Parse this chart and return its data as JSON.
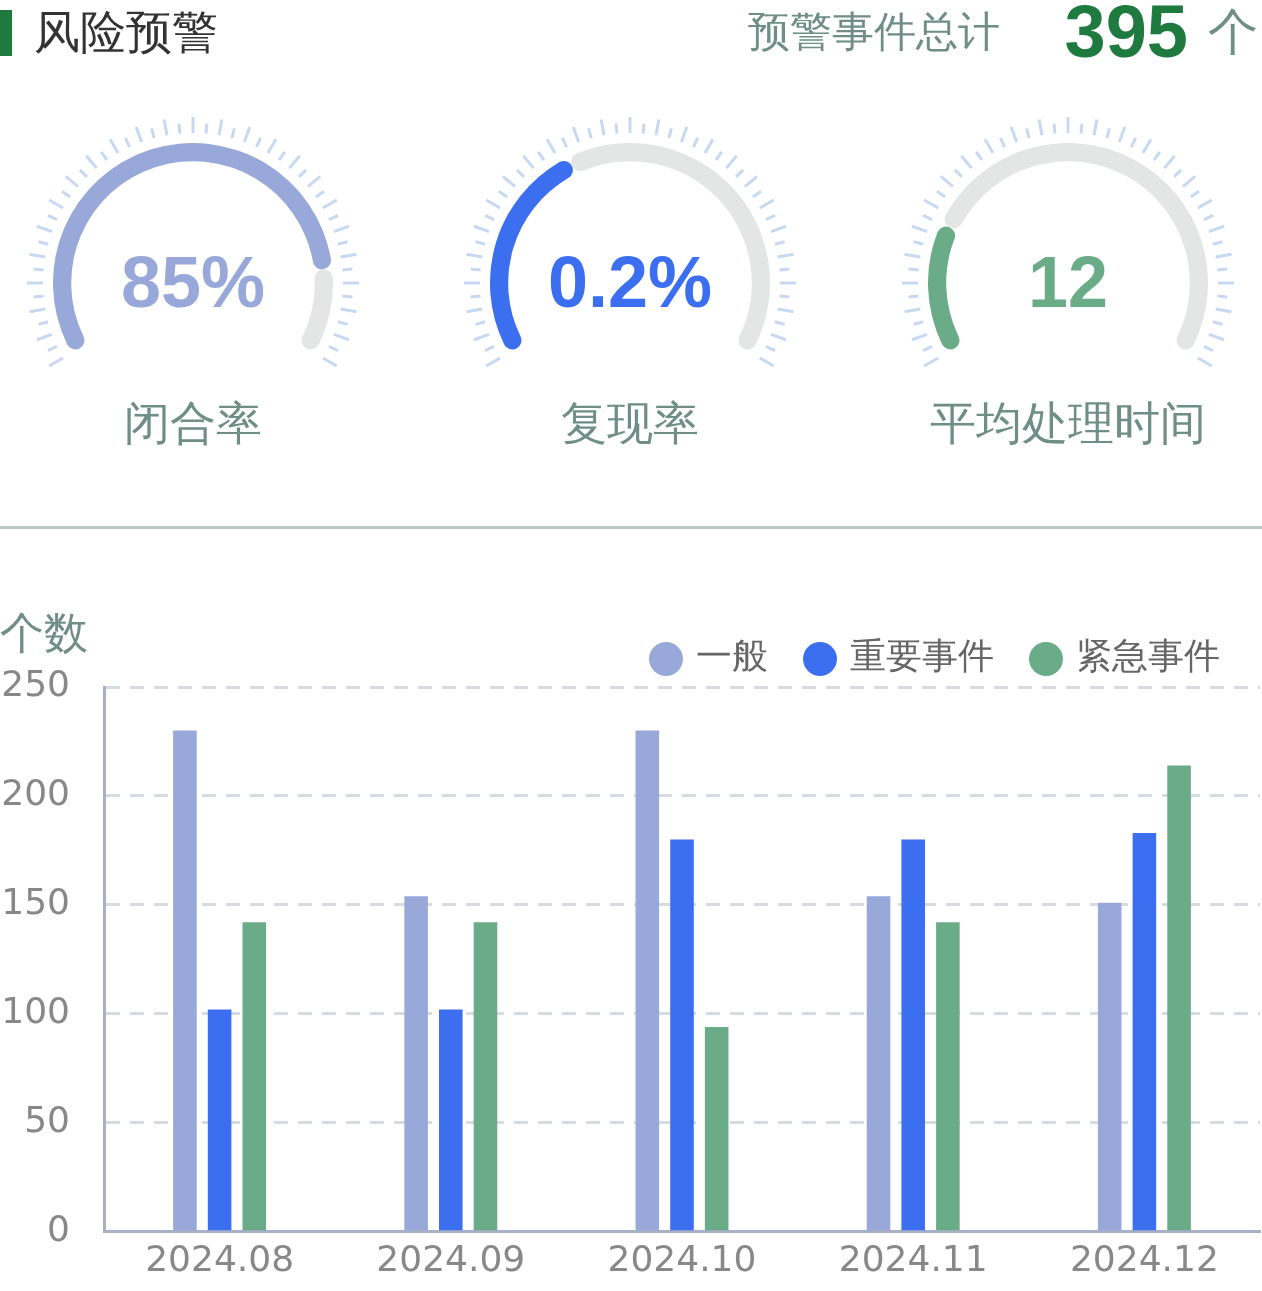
{
  "chart_data": [
    {
      "type": "other",
      "title": "风险预警",
      "annotations": [
        "预警事件总计",
        "395",
        "个"
      ]
    },
    {
      "type": "donut",
      "title": "闭合率",
      "categories": [
        null,
        null
      ],
      "values": [
        85,
        15
      ],
      "colors": [
        "#98a8d8",
        "#e2e7e6"
      ],
      "annotations": [
        "85%"
      ]
    },
    {
      "type": "donut",
      "title": "复现率",
      "categories": [
        null,
        null
      ],
      "values": [
        39,
        61
      ],
      "colors": [
        "#3c6ff0",
        "#e2e7e6"
      ],
      "annotations": [
        "0.2%"
      ]
    },
    {
      "type": "donut",
      "title": "平均处理时间",
      "categories": [
        null,
        null
      ],
      "values": [
        23,
        77
      ],
      "colors": [
        "#6aab88",
        "#e2e7e6"
      ],
      "annotations": [
        "12"
      ]
    },
    {
      "type": "bar",
      "ylabel": "个数",
      "categories": [
        "2024.08",
        "2024.09",
        "2024.10",
        "2024.11",
        "2024.12"
      ],
      "series": [
        {
          "name": "一般",
          "color": "#98a8d8",
          "values": [
            230,
            154,
            230,
            154,
            151
          ]
        },
        {
          "name": "重要事件",
          "color": "#3c6ff0",
          "values": [
            102,
            102,
            180,
            180,
            183
          ]
        },
        {
          "name": "紧急事件",
          "color": "#6aab88",
          "values": [
            142,
            142,
            94,
            142,
            214
          ]
        }
      ],
      "ylim": [
        0,
        250
      ],
      "yticks": [
        0,
        50,
        100,
        150,
        200,
        250
      ],
      "grid": "y",
      "legend": "top right"
    }
  ]
}
